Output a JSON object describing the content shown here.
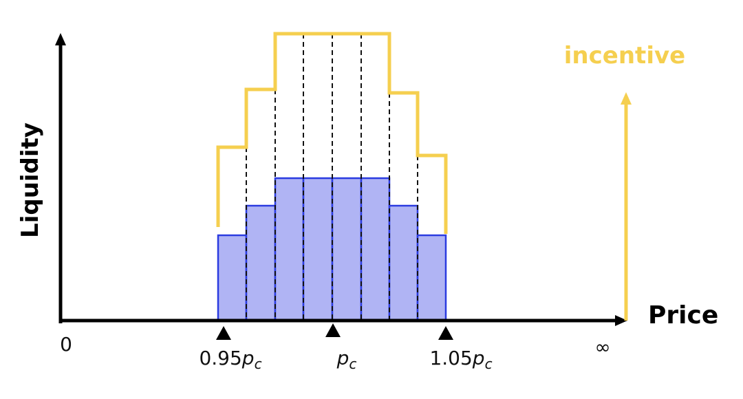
{
  "axes": {
    "y_label": "Liquidity",
    "x_label": "Price",
    "x_start": "0",
    "x_end": "∞"
  },
  "incentive_label": "incentive",
  "markers": [
    {
      "coefficient": "0.95",
      "symbol": "p",
      "subscript": "c"
    },
    {
      "symbol": "p",
      "subscript": "c"
    },
    {
      "coefficient": "1.05",
      "symbol": "p",
      "subscript": "c"
    }
  ]
}
